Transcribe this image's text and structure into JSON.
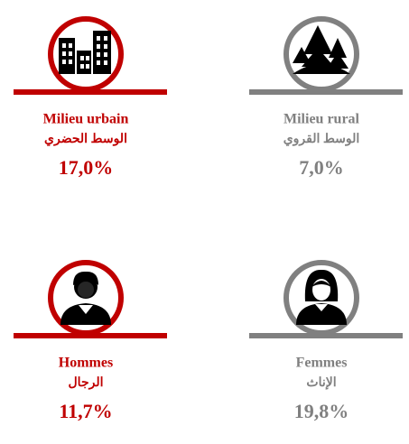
{
  "items": [
    {
      "label": "Milieu urbain",
      "label_ar": "الوسط الحضري",
      "value": "17,0%",
      "color": "#c00000"
    },
    {
      "label": "Milieu rural",
      "label_ar": "الوسط القروي",
      "value": "7,0%",
      "color": "#808080"
    },
    {
      "label": "Hommes",
      "label_ar": "الرجال",
      "value": "11,7%",
      "color": "#c00000"
    },
    {
      "label": "Femmes",
      "label_ar": "الإناث",
      "value": "19,8%",
      "color": "#808080"
    }
  ]
}
